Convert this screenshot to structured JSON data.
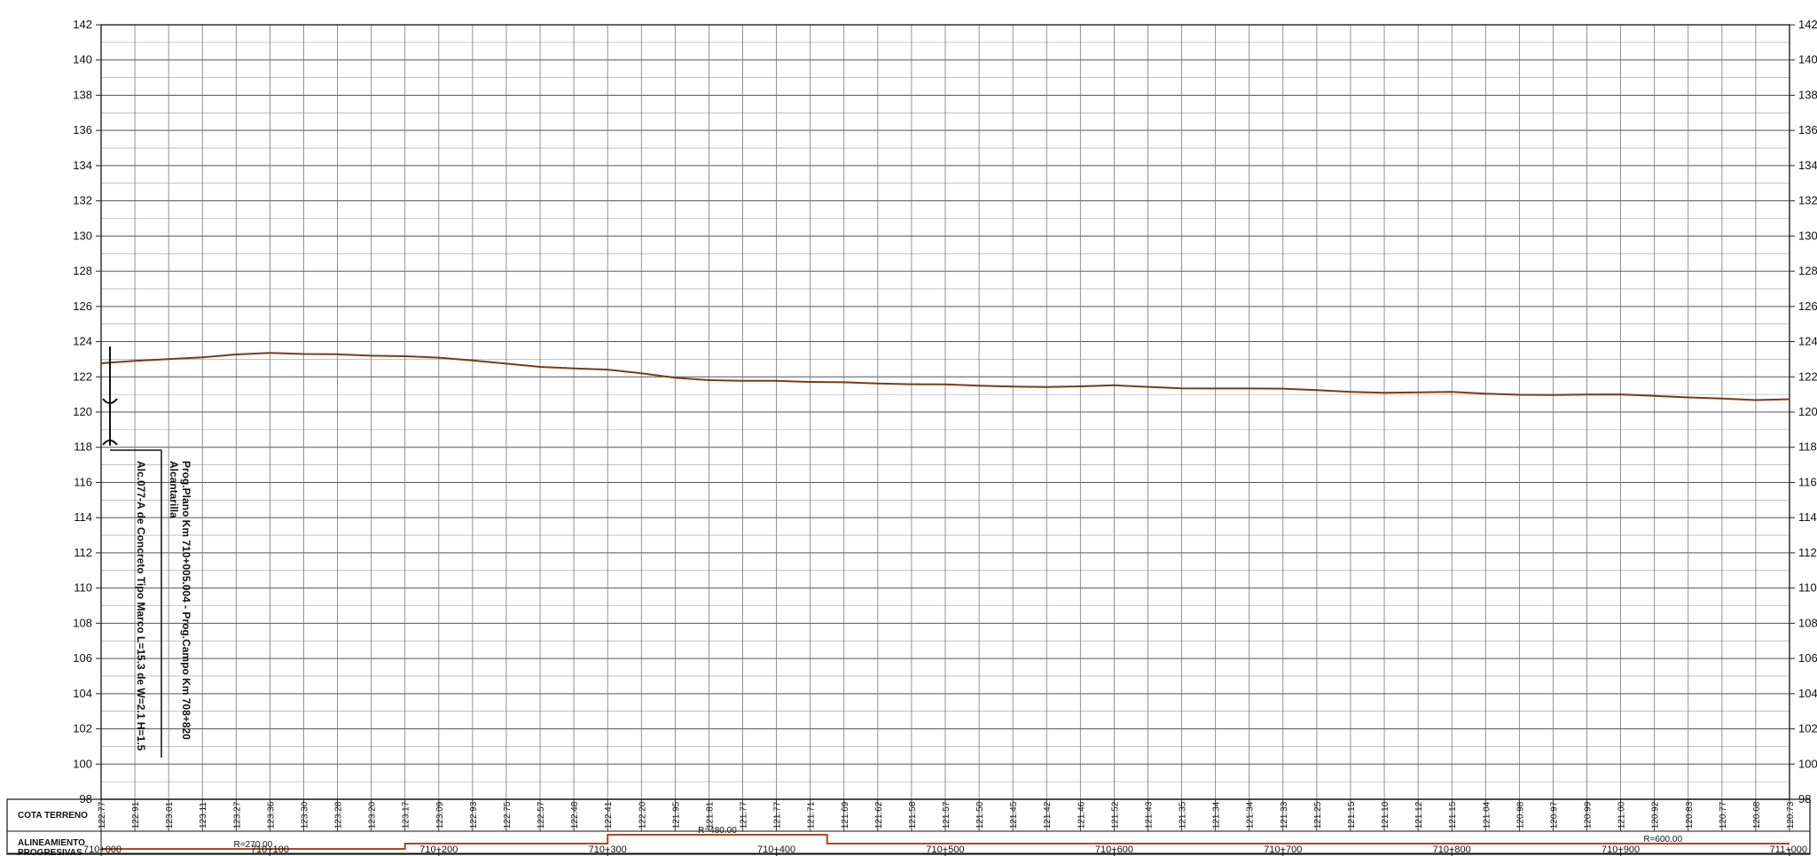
{
  "chart_data": {
    "type": "line",
    "title": "",
    "xlabel": "",
    "ylabel": "",
    "ylim": [
      98,
      142
    ],
    "y_ticks": [
      98,
      100,
      102,
      104,
      106,
      108,
      110,
      112,
      114,
      116,
      118,
      120,
      122,
      124,
      126,
      128,
      130,
      132,
      134,
      136,
      138,
      140,
      142
    ],
    "x_range": [
      0,
      1000
    ],
    "grid": true,
    "series": [
      {
        "color": "#7a3b12",
        "x": [
          0,
          20,
          40,
          60,
          80,
          100,
          120,
          140,
          160,
          180,
          200,
          220,
          240,
          260,
          280,
          300,
          320,
          340,
          360,
          380,
          400,
          420,
          440,
          460,
          480,
          500,
          520,
          540,
          560,
          580,
          600,
          620,
          640,
          660,
          680,
          700,
          720,
          740,
          760,
          780,
          800,
          820,
          840,
          860,
          880,
          900,
          920,
          940,
          960,
          980,
          1000
        ],
        "values": [
          122.77,
          122.91,
          123.01,
          123.11,
          123.27,
          123.36,
          123.3,
          123.28,
          123.2,
          123.17,
          123.09,
          122.93,
          122.75,
          122.57,
          122.48,
          122.41,
          122.2,
          121.95,
          121.81,
          121.77,
          121.77,
          121.71,
          121.69,
          121.62,
          121.58,
          121.57,
          121.5,
          121.45,
          121.42,
          121.46,
          121.52,
          121.43,
          121.35,
          121.34,
          121.34,
          121.33,
          121.25,
          121.15,
          121.1,
          121.12,
          121.15,
          121.04,
          120.98,
          120.97,
          120.99,
          121.0,
          120.92,
          120.83,
          120.77,
          120.68,
          120.73
        ]
      }
    ]
  },
  "table": {
    "cota_label": "COTA TERRENO",
    "alineamiento_label": "ALINEAMIENTO",
    "progresivas_label": "PROGRESIVAS",
    "cota_values": [
      "122.77",
      "122.91",
      "123.01",
      "123.11",
      "123.27",
      "123.36",
      "123.30",
      "123.28",
      "123.20",
      "123.17",
      "123.09",
      "122.93",
      "122.75",
      "122.57",
      "122.48",
      "122.41",
      "122.20",
      "121.95",
      "121.81",
      "121.77",
      "121.77",
      "121.71",
      "121.69",
      "121.62",
      "121.58",
      "121.57",
      "121.50",
      "121.45",
      "121.42",
      "121.46",
      "121.52",
      "121.43",
      "121.35",
      "121.34",
      "121.34",
      "121.33",
      "121.25",
      "121.15",
      "121.10",
      "121.12",
      "121.15",
      "121.04",
      "120.98",
      "120.97",
      "120.99",
      "121.00",
      "120.92",
      "120.83",
      "120.77",
      "120.68",
      "120.73"
    ],
    "alignment_color": "#b5451b",
    "alignment_segments": [
      {
        "from": 0,
        "to": 180,
        "level": "low",
        "label": "R=270.00"
      },
      {
        "from": 180,
        "to": 300,
        "level": "mid",
        "label": ""
      },
      {
        "from": 300,
        "to": 430,
        "level": "high",
        "label": "R=480.00"
      },
      {
        "from": 430,
        "to": 850,
        "level": "mid",
        "label": ""
      },
      {
        "from": 850,
        "to": 1000,
        "level": "mid-low",
        "label": "R=600.00"
      }
    ],
    "progresivas": [
      {
        "x": 0,
        "label": "710+000"
      },
      {
        "x": 100,
        "label": "710+100"
      },
      {
        "x": 200,
        "label": "710+200"
      },
      {
        "x": 300,
        "label": "710+300"
      },
      {
        "x": 400,
        "label": "710+400"
      },
      {
        "x": 500,
        "label": "710+500"
      },
      {
        "x": 600,
        "label": "710+600"
      },
      {
        "x": 700,
        "label": "710+700"
      },
      {
        "x": 800,
        "label": "710+800"
      },
      {
        "x": 900,
        "label": "710+900"
      },
      {
        "x": 1000,
        "label": "711+000"
      }
    ]
  },
  "annotations": {
    "lines": [
      "Prog.Plano Km 710+005.004 - Prog.Campo Km 708+820",
      "Alcantarilla",
      "Alc.077-A de Concreto Tipo Marco L=15.3 de W=2.1 H=1.5"
    ]
  }
}
